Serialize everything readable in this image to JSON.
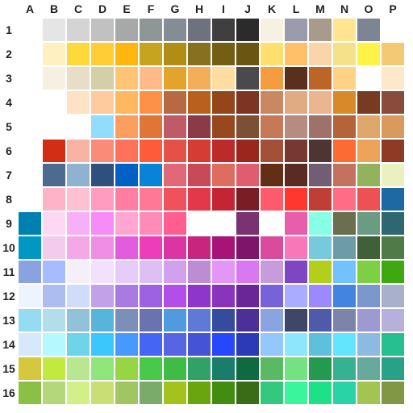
{
  "columns": [
    "A",
    "B",
    "C",
    "D",
    "E",
    "F",
    "G",
    "H",
    "I",
    "J",
    "K",
    "L",
    "M",
    "N",
    "O",
    "P"
  ],
  "rows": [
    "1",
    "2",
    "3",
    "4",
    "5",
    "6",
    "7",
    "8",
    "9",
    "10",
    "11",
    "12",
    "13",
    "14",
    "15",
    "16"
  ],
  "colors": [
    [
      "#ffffff",
      "#e5e5e5",
      "#d4d4d4",
      "#c1c1c1",
      "#a7a9a9",
      "#8e9696",
      "#848c95",
      "#6f717e",
      "#3f3f40",
      "#2b2b2b",
      "#f8f0e0",
      "#9b9bad",
      "#a89b8c",
      "#ffe592",
      "#7d8595",
      "#ffffff"
    ],
    [
      "#ffffff",
      "#fff0c2",
      "#ffd83c",
      "#ffcd36",
      "#ffb70f",
      "#c6a420",
      "#b08e14",
      "#87701f",
      "#735e14",
      "#6a5512",
      "#ffdf6e",
      "#ffc069",
      "#f9d5a9",
      "#f5e18a",
      "#fef244",
      "#f3ca73"
    ],
    [
      "#ffffff",
      "#f6f0e2",
      "#e8ddc7",
      "#d4cfa6",
      "#ffc574",
      "#ffba89",
      "#e3a42b",
      "#f4ad59",
      "#ffdda0",
      "#4a4a4e",
      "#f49d40",
      "#5a2f1c",
      "#bd6427",
      "#ffd285",
      "#ffffff",
      "#fde8c9"
    ],
    [
      "#ffffff",
      "#ffffff",
      "#fde2c6",
      "#fdcb9e",
      "#ffb85e",
      "#fd9147",
      "#b76a42",
      "#b8611e",
      "#94451a",
      "#7d3422",
      "#c98861",
      "#e0aa82",
      "#ebb592",
      "#d88a2b",
      "#773b21",
      "#8a4a3c"
    ],
    [
      "#ffffff",
      "#ffffff",
      "#ffffff",
      "#92dcfd",
      "#fc9e60",
      "#df7537",
      "#bf5b67",
      "#8b3a47",
      "#98481f",
      "#7d5035",
      "#c67958",
      "#b68b82",
      "#9f7269",
      "#b46439",
      "#dea86b",
      "#d99a5e"
    ],
    [
      "#ffffff",
      "#d12e14",
      "#f8b3a2",
      "#fb8a78",
      "#fe725c",
      "#ff5b3a",
      "#e65147",
      "#d43d34",
      "#bd2a2a",
      "#992720",
      "#a35038",
      "#763931",
      "#4e3533",
      "#fc6b34",
      "#eda35a",
      "#8e3a24"
    ],
    [
      "#ffffff",
      "#4d6a8f",
      "#8fb2d2",
      "#2f4f7c",
      "#0060c4",
      "#0884d6",
      "#e06878",
      "#c84a58",
      "#de6d60",
      "#e05d6e",
      "#642e14",
      "#592b22",
      "#725e74",
      "#c2725f",
      "#93b25e",
      "#ebf0c1"
    ],
    [
      "#ffffff",
      "#ffb3c9",
      "#ffc0d2",
      "#ff9cbf",
      "#ff7ea1",
      "#ff7895",
      "#f0525d",
      "#e3374a",
      "#c42534",
      "#7a1d24",
      "#ff5a6e",
      "#ff372f",
      "#bf3e36",
      "#ff6c86",
      "#ed5154",
      "#1e68a3"
    ],
    [
      "#007fb1",
      "#ffd7f5",
      "#f7b0f7",
      "#f58cf7",
      "#ffa7d0",
      "#ff8bb6",
      "#ff5f90",
      "#ffffff",
      "#ffffff",
      "#7a3370",
      "#ffffff",
      "#e75faa",
      "#86ffe2",
      "#6a704e",
      "#6a9c84",
      "#2e6770"
    ],
    [
      "#0097c5",
      "#f3cbed",
      "#f4a8e7",
      "#ef8ee5",
      "#e35cdd",
      "#ed3db8",
      "#dc34a2",
      "#c8267e",
      "#a81376",
      "#7e156a",
      "#da4a9d",
      "#f778b8",
      "#77c9dc",
      "#6e9ba8",
      "#406039",
      "#507b48"
    ],
    [
      "#8aa2e0",
      "#a7bcff",
      "#f4f0fa",
      "#f3e0ff",
      "#e6ccf8",
      "#ddbff3",
      "#d1a1ed",
      "#bc8dd5",
      "#e395f8",
      "#d978f0",
      "#c79bdc",
      "#7d47c4",
      "#b2cf1d",
      "#72c2fe",
      "#7dd044",
      "#3fa810"
    ],
    [
      "#eef4ff",
      "#adbdf0",
      "#d1dcfb",
      "#c2a1e8",
      "#aa7ae3",
      "#9d62e2",
      "#b44ee8",
      "#8e36c9",
      "#8a34bc",
      "#6a2696",
      "#7862da",
      "#a9acff",
      "#9b89ff",
      "#4284e0",
      "#7a98cb",
      "#a9b0cb"
    ],
    [
      "#94dcef",
      "#b2deeb",
      "#92c2d8",
      "#57b5db",
      "#7c8fb8",
      "#6a73ad",
      "#509bdf",
      "#5e79d6",
      "#354c9e",
      "#4b3098",
      "#8aa4e1",
      "#3f4768",
      "#505aaa",
      "#7d84a9",
      "#9d9ad1",
      "#b6b1da"
    ],
    [
      "#d7e8fd",
      "#b5f8fe",
      "#6dd4ea",
      "#3bc7fb",
      "#4799fd",
      "#4566f4",
      "#5764e3",
      "#4454d5",
      "#2647fc",
      "#2b3ab7",
      "#94c7fc",
      "#8ee6fd",
      "#5dc1dc",
      "#62e6fd",
      "#8eb9e0",
      "#27bf8f"
    ],
    [
      "#d5c83f",
      "#c2e940",
      "#b9e78f",
      "#8ee67c",
      "#98d545",
      "#47ca4a",
      "#3fbc45",
      "#31a167",
      "#1a7c6a",
      "#0f6941",
      "#5ab963",
      "#73e283",
      "#239a50",
      "#36b291",
      "#67a99a",
      "#28a287"
    ],
    [
      "#8bc047",
      "#b4d779",
      "#d3ef88",
      "#cadf73",
      "#a1c560",
      "#7aab6a",
      "#a3c21c",
      "#6aa40e",
      "#428c12",
      "#3a6c18",
      "#32c97e",
      "#39f69a",
      "#1de285",
      "#2ad3a6",
      "#a3c451",
      "#809845"
    ]
  ]
}
